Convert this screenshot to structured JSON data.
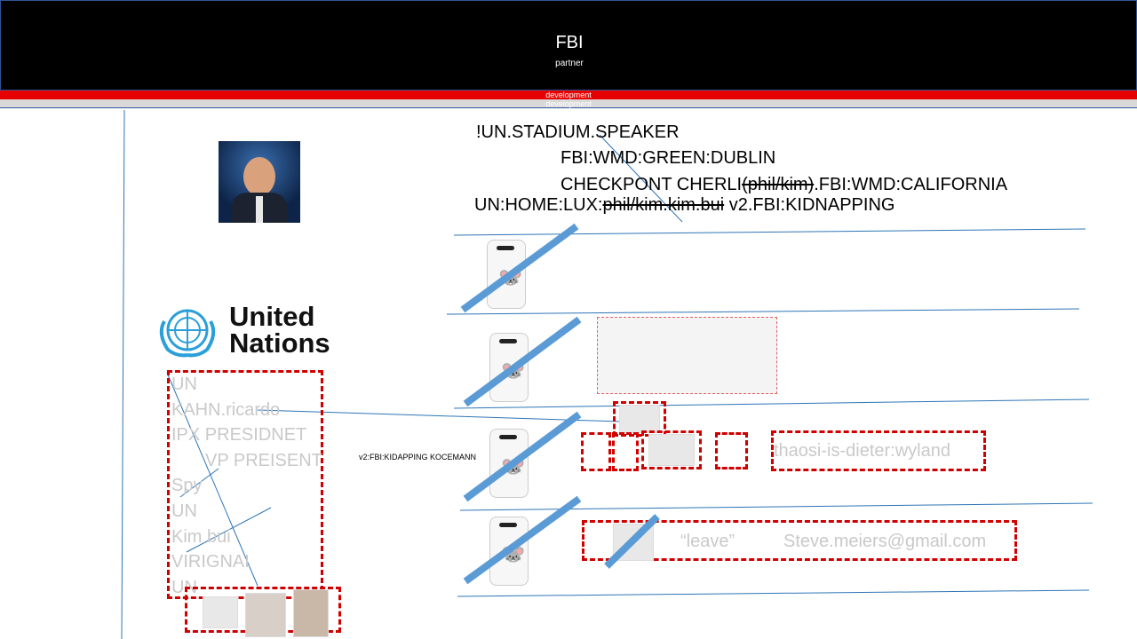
{
  "header": {
    "title": "FBI",
    "subtitle": "partner",
    "bar_red_label": "development",
    "bar_gray_label": "development"
  },
  "codes": {
    "line1": "!UN.STADIUM.SPEAKER",
    "line2": "FBI:WMD:GREEN:DUBLIN",
    "line3_a": "CHECKPONT CHERLI",
    "line3_strike": "(phil/kim)",
    "line3_b": ".FBI:WMD:CALIFORNIA",
    "line4_a": "UN:HOME:LUX:",
    "line4_strike": "phil/kim.kim.bui",
    "line4_b": " v2.FBI:KIDNAPPING"
  },
  "logo": {
    "line1": "United",
    "line2": "Nations"
  },
  "list": {
    "items": [
      "UN",
      "KAHN.ricardo",
      "IPX PRESIDNET",
      "VP PREISENT",
      "Spy",
      "UN",
      "Kim bui",
      "VIRIGNAI",
      "UN"
    ]
  },
  "side_label": "v2:FBI:KIDAPPING KOCEMANN",
  "row3": {
    "tag": "thaosi-is-dieter:wyland"
  },
  "row4": {
    "leave": "“leave”",
    "email": "Steve.meiers@gmail.com"
  },
  "colors": {
    "accent_red": "#e60000",
    "dash_red": "#d00000",
    "slash_blue": "#5b9bd5",
    "line_blue": "#2e75b6"
  },
  "icons": {
    "phone": "phone-case-icon",
    "globe": "un-emblem-icon",
    "portrait": "portrait-photo"
  }
}
